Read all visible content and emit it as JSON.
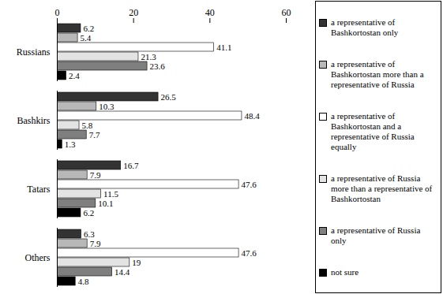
{
  "chart_data": {
    "type": "bar",
    "orientation": "horizontal",
    "categories": [
      "Russians",
      "Bashkirs",
      "Tatars",
      "Others"
    ],
    "series": [
      {
        "name": "a representative of Bashkortostan only",
        "color": "#333333",
        "values": [
          6.2,
          26.5,
          16.7,
          6.3
        ]
      },
      {
        "name": "a representative of Bashkortostan more than a representative of Russia",
        "color": "#b8b8b8",
        "values": [
          5.4,
          10.3,
          7.9,
          7.9
        ]
      },
      {
        "name": "a representative of Bashkortostan and a representative of Russia equally",
        "color": "#ffffff",
        "values": [
          41.1,
          48.4,
          47.6,
          47.6
        ]
      },
      {
        "name": "a representative of Russia more than a representative of Bashkortostan",
        "color": "#e3e3e3",
        "values": [
          21.3,
          5.8,
          11.5,
          19
        ]
      },
      {
        "name": "a representative of Russia only",
        "color": "#7f7f7f",
        "values": [
          23.6,
          7.7,
          10.1,
          14.4
        ]
      },
      {
        "name": "not sure",
        "color": "#000000",
        "values": [
          2.4,
          1.3,
          6.2,
          4.8
        ]
      }
    ],
    "xlim": [
      0,
      60
    ],
    "xticks": [
      0,
      20,
      40,
      60
    ],
    "data_labels": true,
    "legend": "right",
    "grid": false
  }
}
